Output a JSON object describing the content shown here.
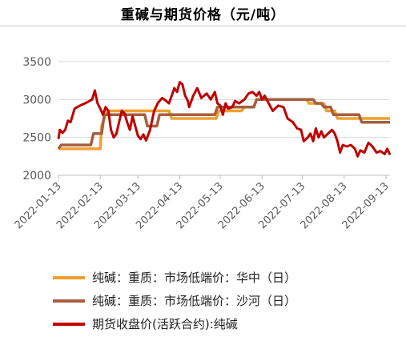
{
  "chart_data": {
    "type": "line",
    "title": "重碱与期货价格（元/吨）",
    "xlabel": "",
    "ylabel": "",
    "ylim": [
      2000,
      3500
    ],
    "yticks": [
      "2000",
      "2500",
      "3000",
      "3500"
    ],
    "xticks": [
      "2022-01-13",
      "2022-02-13",
      "2022-03-13",
      "2022-04-13",
      "2022-05-13",
      "2022-06-13",
      "2022-07-13",
      "2022-08-13",
      "2022-09-13"
    ],
    "xrange": [
      "2022-01-13",
      "2022-09-16"
    ],
    "grid": "horizontal",
    "legend_position": "bottom",
    "series": [
      {
        "name": "纯碱：重质：市场低端价：华中（日）",
        "color": "#f0a030",
        "points": [
          [
            "2022-01-13",
            2350
          ],
          [
            "2022-02-13",
            2350
          ],
          [
            "2022-02-14",
            2650
          ],
          [
            "2022-02-18",
            2850
          ],
          [
            "2022-04-05",
            2850
          ],
          [
            "2022-04-07",
            2750
          ],
          [
            "2022-05-10",
            2750
          ],
          [
            "2022-05-12",
            2850
          ],
          [
            "2022-05-29",
            2850
          ],
          [
            "2022-05-31",
            2900
          ],
          [
            "2022-06-07",
            2900
          ],
          [
            "2022-06-09",
            3000
          ],
          [
            "2022-07-16",
            3000
          ],
          [
            "2022-07-18",
            2950
          ],
          [
            "2022-07-29",
            2950
          ],
          [
            "2022-07-31",
            2850
          ],
          [
            "2022-08-06",
            2850
          ],
          [
            "2022-08-08",
            2750
          ],
          [
            "2022-09-16",
            2750
          ]
        ]
      },
      {
        "name": "纯碱：重质：市场低端价：沙河（日）",
        "color": "#a55f40",
        "points": [
          [
            "2022-01-13",
            2350
          ],
          [
            "2022-01-15",
            2400
          ],
          [
            "2022-02-06",
            2400
          ],
          [
            "2022-02-08",
            2550
          ],
          [
            "2022-02-14",
            2550
          ],
          [
            "2022-02-16",
            2800
          ],
          [
            "2022-03-18",
            2800
          ],
          [
            "2022-03-20",
            2650
          ],
          [
            "2022-03-27",
            2650
          ],
          [
            "2022-03-29",
            2800
          ],
          [
            "2022-04-03",
            2800
          ],
          [
            "2022-04-05",
            2800
          ],
          [
            "2022-05-09",
            2800
          ],
          [
            "2022-05-11",
            2900
          ],
          [
            "2022-06-07",
            2900
          ],
          [
            "2022-06-09",
            3000
          ],
          [
            "2022-07-21",
            3000
          ],
          [
            "2022-07-23",
            2950
          ],
          [
            "2022-07-27",
            2950
          ],
          [
            "2022-07-29",
            2900
          ],
          [
            "2022-08-03",
            2900
          ],
          [
            "2022-08-05",
            2800
          ],
          [
            "2022-08-24",
            2800
          ],
          [
            "2022-08-26",
            2700
          ],
          [
            "2022-09-16",
            2700
          ]
        ]
      },
      {
        "name": "期货收盘价(活跃合约):纯碱",
        "color": "#c00000",
        "points": [
          [
            "2022-01-13",
            2480
          ],
          [
            "2022-01-14",
            2600
          ],
          [
            "2022-01-16",
            2560
          ],
          [
            "2022-01-18",
            2600
          ],
          [
            "2022-01-20",
            2720
          ],
          [
            "2022-01-22",
            2700
          ],
          [
            "2022-01-25",
            2880
          ],
          [
            "2022-01-29",
            2920
          ],
          [
            "2022-02-03",
            2960
          ],
          [
            "2022-02-07",
            3000
          ],
          [
            "2022-02-09",
            3120
          ],
          [
            "2022-02-11",
            2950
          ],
          [
            "2022-02-13",
            2880
          ],
          [
            "2022-02-15",
            2800
          ],
          [
            "2022-02-17",
            2900
          ],
          [
            "2022-02-19",
            2850
          ],
          [
            "2022-02-21",
            2600
          ],
          [
            "2022-02-23",
            2500
          ],
          [
            "2022-02-25",
            2550
          ],
          [
            "2022-02-27",
            2700
          ],
          [
            "2022-03-01",
            2850
          ],
          [
            "2022-03-03",
            2820
          ],
          [
            "2022-03-05",
            2700
          ],
          [
            "2022-03-07",
            2600
          ],
          [
            "2022-03-09",
            2780
          ],
          [
            "2022-03-11",
            2650
          ],
          [
            "2022-03-13",
            2520
          ],
          [
            "2022-03-15",
            2480
          ],
          [
            "2022-03-17",
            2540
          ],
          [
            "2022-03-19",
            2460
          ],
          [
            "2022-03-22",
            2600
          ],
          [
            "2022-03-25",
            2850
          ],
          [
            "2022-03-28",
            2960
          ],
          [
            "2022-03-31",
            3020
          ],
          [
            "2022-04-03",
            2980
          ],
          [
            "2022-04-05",
            2950
          ],
          [
            "2022-04-07",
            3050
          ],
          [
            "2022-04-09",
            3150
          ],
          [
            "2022-04-11",
            3100
          ],
          [
            "2022-04-13",
            3230
          ],
          [
            "2022-04-15",
            3200
          ],
          [
            "2022-04-17",
            3050
          ],
          [
            "2022-04-19",
            2980
          ],
          [
            "2022-04-20",
            2900
          ],
          [
            "2022-04-23",
            3050
          ],
          [
            "2022-04-26",
            3150
          ],
          [
            "2022-04-29",
            3020
          ],
          [
            "2022-05-03",
            3080
          ],
          [
            "2022-05-06",
            3000
          ],
          [
            "2022-05-09",
            3100
          ],
          [
            "2022-05-11",
            2950
          ],
          [
            "2022-05-13",
            2920
          ],
          [
            "2022-05-15",
            2800
          ],
          [
            "2022-05-17",
            2950
          ],
          [
            "2022-05-19",
            2880
          ],
          [
            "2022-05-22",
            2900
          ],
          [
            "2022-05-24",
            2980
          ],
          [
            "2022-05-27",
            2950
          ],
          [
            "2022-05-31",
            3000
          ],
          [
            "2022-06-03",
            3080
          ],
          [
            "2022-06-06",
            3100
          ],
          [
            "2022-06-09",
            3050
          ],
          [
            "2022-06-11",
            3100
          ],
          [
            "2022-06-13",
            3000
          ],
          [
            "2022-06-15",
            3050
          ],
          [
            "2022-06-18",
            2950
          ],
          [
            "2022-06-21",
            2850
          ],
          [
            "2022-06-25",
            2920
          ],
          [
            "2022-06-29",
            2900
          ],
          [
            "2022-07-02",
            2750
          ],
          [
            "2022-07-06",
            2700
          ],
          [
            "2022-07-09",
            2620
          ],
          [
            "2022-07-12",
            2600
          ],
          [
            "2022-07-14",
            2450
          ],
          [
            "2022-07-17",
            2500
          ],
          [
            "2022-07-19",
            2550
          ],
          [
            "2022-07-21",
            2450
          ],
          [
            "2022-07-23",
            2620
          ],
          [
            "2022-07-25",
            2500
          ],
          [
            "2022-07-27",
            2580
          ],
          [
            "2022-07-29",
            2500
          ],
          [
            "2022-08-01",
            2550
          ],
          [
            "2022-08-04",
            2600
          ],
          [
            "2022-08-06",
            2550
          ],
          [
            "2022-08-08",
            2450
          ],
          [
            "2022-08-10",
            2300
          ],
          [
            "2022-08-12",
            2400
          ],
          [
            "2022-08-15",
            2380
          ],
          [
            "2022-08-18",
            2400
          ],
          [
            "2022-08-21",
            2350
          ],
          [
            "2022-08-23",
            2250
          ],
          [
            "2022-08-25",
            2330
          ],
          [
            "2022-08-28",
            2300
          ],
          [
            "2022-08-31",
            2430
          ],
          [
            "2022-09-03",
            2380
          ],
          [
            "2022-09-06",
            2300
          ],
          [
            "2022-09-09",
            2320
          ],
          [
            "2022-09-12",
            2280
          ],
          [
            "2022-09-14",
            2350
          ],
          [
            "2022-09-16",
            2270
          ]
        ]
      }
    ]
  }
}
